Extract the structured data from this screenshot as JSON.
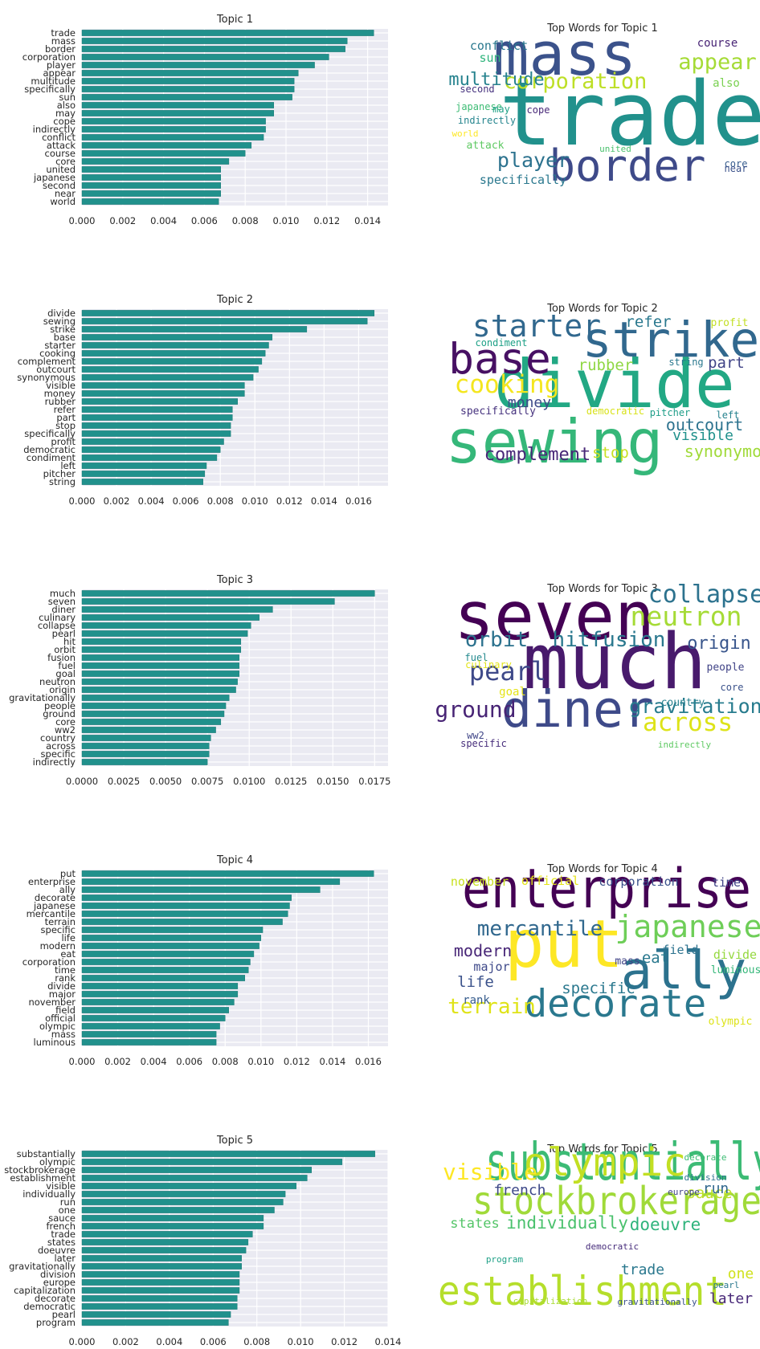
{
  "chart_data": [
    {
      "type": "bar",
      "orientation": "horizontal",
      "title": "Topic 1",
      "categories": [
        "trade",
        "mass",
        "border",
        "corporation",
        "player",
        "appear",
        "multitude",
        "specifically",
        "sun",
        "also",
        "may",
        "cope",
        "indirectly",
        "conflict",
        "attack",
        "course",
        "core",
        "united",
        "japanese",
        "second",
        "near",
        "world"
      ],
      "values": [
        0.0143,
        0.013,
        0.0129,
        0.0121,
        0.0114,
        0.0106,
        0.0104,
        0.0104,
        0.0103,
        0.0094,
        0.0094,
        0.009,
        0.009,
        0.0089,
        0.0083,
        0.008,
        0.0072,
        0.0068,
        0.0068,
        0.0068,
        0.0068,
        0.0067
      ],
      "xticks": [
        "0.000",
        "0.002",
        "0.004",
        "0.006",
        "0.008",
        "0.010",
        "0.012",
        "0.014"
      ],
      "xlim": [
        0,
        0.015
      ],
      "grid": true,
      "wordcloud": {
        "title": "Top Words for Topic 1",
        "words": [
          {
            "text": "trade",
            "color": "#21918c"
          },
          {
            "text": "mass",
            "color": "#3b528b"
          },
          {
            "text": "border",
            "color": "#3e4a89"
          },
          {
            "text": "corporation",
            "color": "#bddf26"
          },
          {
            "text": "appear",
            "color": "#a5db36"
          },
          {
            "text": "player",
            "color": "#2c728e"
          },
          {
            "text": "multitude",
            "color": "#26828e"
          },
          {
            "text": "specifically",
            "color": "#2a788e"
          },
          {
            "text": "conflict",
            "color": "#2a788e"
          },
          {
            "text": "sun",
            "color": "#2fb47c"
          },
          {
            "text": "course",
            "color": "#482475"
          },
          {
            "text": "also",
            "color": "#7ad151"
          },
          {
            "text": "second",
            "color": "#46327e"
          },
          {
            "text": "japanese",
            "color": "#3dbc74"
          },
          {
            "text": "may",
            "color": "#1fa187"
          },
          {
            "text": "cope",
            "color": "#482878"
          },
          {
            "text": "indirectly",
            "color": "#25858e"
          },
          {
            "text": "world",
            "color": "#fde725"
          },
          {
            "text": "attack",
            "color": "#5ec962"
          },
          {
            "text": "united",
            "color": "#4ac16d"
          },
          {
            "text": "core",
            "color": "#365c8d"
          },
          {
            "text": "near",
            "color": "#3b528b"
          }
        ]
      }
    },
    {
      "type": "bar",
      "orientation": "horizontal",
      "title": "Topic 2",
      "categories": [
        "divide",
        "sewing",
        "strike",
        "base",
        "starter",
        "cooking",
        "complement",
        "outcourt",
        "synonymous",
        "visible",
        "money",
        "rubber",
        "refer",
        "part",
        "stop",
        "specifically",
        "profit",
        "democratic",
        "condiment",
        "left",
        "pitcher",
        "string"
      ],
      "values": [
        0.0169,
        0.0165,
        0.013,
        0.011,
        0.0108,
        0.0106,
        0.0104,
        0.0102,
        0.0099,
        0.0094,
        0.0094,
        0.009,
        0.0087,
        0.0087,
        0.0086,
        0.0086,
        0.0082,
        0.008,
        0.0078,
        0.0072,
        0.0071,
        0.007
      ],
      "xticks": [
        "0.000",
        "0.002",
        "0.004",
        "0.006",
        "0.008",
        "0.010",
        "0.012",
        "0.014",
        "0.016"
      ],
      "xlim": [
        0,
        0.0177
      ],
      "grid": true,
      "wordcloud": {
        "title": "Top Words for Topic 2",
        "words": [
          {
            "text": "divide",
            "color": "#22a884"
          },
          {
            "text": "sewing",
            "color": "#35b779"
          },
          {
            "text": "strike",
            "color": "#31688e"
          },
          {
            "text": "base",
            "color": "#471063"
          },
          {
            "text": "starter",
            "color": "#31688e"
          },
          {
            "text": "cooking",
            "color": "#f4e61e"
          },
          {
            "text": "complement",
            "color": "#482878"
          },
          {
            "text": "outcourt",
            "color": "#2c728e"
          },
          {
            "text": "synonymous",
            "color": "#a0da39"
          },
          {
            "text": "visible",
            "color": "#21918c"
          },
          {
            "text": "money",
            "color": "#3e4989"
          },
          {
            "text": "rubber",
            "color": "#8fd744"
          },
          {
            "text": "refer",
            "color": "#2a788e"
          },
          {
            "text": "part",
            "color": "#414487"
          },
          {
            "text": "stop",
            "color": "#c8e020"
          },
          {
            "text": "specifically",
            "color": "#46327e"
          },
          {
            "text": "profit",
            "color": "#c2df23"
          },
          {
            "text": "democratic",
            "color": "#d8e219"
          },
          {
            "text": "condiment",
            "color": "#1fa187"
          },
          {
            "text": "left",
            "color": "#26828e"
          },
          {
            "text": "pitcher",
            "color": "#1f9e89"
          },
          {
            "text": "string",
            "color": "#2a788e"
          }
        ]
      }
    },
    {
      "type": "bar",
      "orientation": "horizontal",
      "title": "Topic 3",
      "categories": [
        "much",
        "seven",
        "diner",
        "culinary",
        "collapse",
        "pearl",
        "hit",
        "orbit",
        "fusion",
        "fuel",
        "goal",
        "neutron",
        "origin",
        "gravitationally",
        "people",
        "ground",
        "core",
        "ww2",
        "country",
        "across",
        "specific",
        "indirectly"
      ],
      "values": [
        0.0175,
        0.0151,
        0.0114,
        0.0106,
        0.0101,
        0.0099,
        0.0095,
        0.0095,
        0.0094,
        0.0094,
        0.0094,
        0.0093,
        0.0092,
        0.0088,
        0.0086,
        0.0085,
        0.0083,
        0.008,
        0.0077,
        0.0076,
        0.0076,
        0.0075
      ],
      "xticks": [
        "0.0000",
        "0.0025",
        "0.0050",
        "0.0075",
        "0.0100",
        "0.0125",
        "0.0150",
        "0.0175"
      ],
      "xlim": [
        0,
        0.0183
      ],
      "grid": true,
      "wordcloud": {
        "title": "Top Words for Topic 3",
        "words": [
          {
            "text": "seven",
            "color": "#440154"
          },
          {
            "text": "much",
            "color": "#481a6c"
          },
          {
            "text": "diner",
            "color": "#3e4a89"
          },
          {
            "text": "neutron",
            "color": "#a5db36"
          },
          {
            "text": "collapse",
            "color": "#2c728e"
          },
          {
            "text": "orbit",
            "color": "#2c728e"
          },
          {
            "text": "hitfusion",
            "color": "#2a788e"
          },
          {
            "text": "origin",
            "color": "#39568c"
          },
          {
            "text": "pearl",
            "color": "#3e4989"
          },
          {
            "text": "gravitationally",
            "color": "#287c8e"
          },
          {
            "text": "across",
            "color": "#dde318"
          },
          {
            "text": "ground",
            "color": "#482475"
          },
          {
            "text": "goal",
            "color": "#e5e419"
          },
          {
            "text": "fuel",
            "color": "#23898e"
          },
          {
            "text": "culinary",
            "color": "#e2e418"
          },
          {
            "text": "people",
            "color": "#414487"
          },
          {
            "text": "country",
            "color": "#27808e"
          },
          {
            "text": "core",
            "color": "#3b528b"
          },
          {
            "text": "ww2",
            "color": "#404688"
          },
          {
            "text": "specific",
            "color": "#472d7b"
          },
          {
            "text": "indirectly",
            "color": "#5ec962"
          }
        ]
      }
    },
    {
      "type": "bar",
      "orientation": "horizontal",
      "title": "Topic 4",
      "categories": [
        "put",
        "enterprise",
        "ally",
        "decorate",
        "japanese",
        "mercantile",
        "terrain",
        "specific",
        "life",
        "modern",
        "eat",
        "corporation",
        "time",
        "rank",
        "divide",
        "major",
        "november",
        "field",
        "official",
        "olympic",
        "mass",
        "luminous"
      ],
      "values": [
        0.0163,
        0.0144,
        0.0133,
        0.0117,
        0.0116,
        0.0115,
        0.0112,
        0.0101,
        0.01,
        0.0099,
        0.0096,
        0.0094,
        0.0093,
        0.0091,
        0.0087,
        0.0087,
        0.0085,
        0.0082,
        0.008,
        0.0077,
        0.0075,
        0.0075
      ],
      "xticks": [
        "0.000",
        "0.002",
        "0.004",
        "0.006",
        "0.008",
        "0.010",
        "0.012",
        "0.014",
        "0.016"
      ],
      "xlim": [
        0,
        0.0171
      ],
      "grid": true,
      "wordcloud": {
        "title": "Top Words for Topic 4",
        "words": [
          {
            "text": "enterprise",
            "color": "#440154"
          },
          {
            "text": "put",
            "color": "#fde725"
          },
          {
            "text": "ally",
            "color": "#2c728e"
          },
          {
            "text": "decorate",
            "color": "#2a788e"
          },
          {
            "text": "japanese",
            "color": "#6ece58"
          },
          {
            "text": "mercantile",
            "color": "#31688e"
          },
          {
            "text": "terrain",
            "color": "#dfe318"
          },
          {
            "text": "modern",
            "color": "#482677"
          },
          {
            "text": "eat",
            "color": "#2a788e"
          },
          {
            "text": "life",
            "color": "#3b528b"
          },
          {
            "text": "specific",
            "color": "#2a788e"
          },
          {
            "text": "rank",
            "color": "#365c8d"
          },
          {
            "text": "november",
            "color": "#c8e020"
          },
          {
            "text": "official",
            "color": "#e5e419"
          },
          {
            "text": "corporation",
            "color": "#3b528b"
          },
          {
            "text": "time",
            "color": "#414487"
          },
          {
            "text": "field",
            "color": "#2c728e"
          },
          {
            "text": "divide",
            "color": "#95d840"
          },
          {
            "text": "luminous",
            "color": "#35b779"
          },
          {
            "text": "major",
            "color": "#3e4989"
          },
          {
            "text": "mass",
            "color": "#414487"
          },
          {
            "text": "olympic",
            "color": "#dde318"
          }
        ]
      }
    },
    {
      "type": "bar",
      "orientation": "horizontal",
      "title": "Topic 5",
      "categories": [
        "substantially",
        "olympic",
        "stockbrokerage",
        "establishment",
        "visible",
        "individually",
        "run",
        "one",
        "sauce",
        "french",
        "trade",
        "states",
        "doeuvre",
        "later",
        "gravitationally",
        "division",
        "europe",
        "capitalization",
        "decorate",
        "democratic",
        "pearl",
        "program"
      ],
      "values": [
        0.0134,
        0.0119,
        0.0105,
        0.0103,
        0.0098,
        0.0093,
        0.0092,
        0.0088,
        0.0083,
        0.0083,
        0.0078,
        0.0076,
        0.0075,
        0.0073,
        0.0073,
        0.0072,
        0.0072,
        0.0072,
        0.0071,
        0.0071,
        0.0068,
        0.0067
      ],
      "xticks": [
        "0.000",
        "0.002",
        "0.004",
        "0.006",
        "0.008",
        "0.010",
        "0.012",
        "0.014"
      ],
      "xlim": [
        0,
        0.014
      ],
      "grid": true,
      "wordcloud": {
        "title": "Top Words for Topic 5",
        "words": [
          {
            "text": "substantially",
            "color": "#3cbb75"
          },
          {
            "text": "establishment",
            "color": "#b5de2b"
          },
          {
            "text": "stockbrokerage",
            "color": "#a0da39"
          },
          {
            "text": "olympic",
            "color": "#c2df23"
          },
          {
            "text": "visible",
            "color": "#fde725"
          },
          {
            "text": "individually",
            "color": "#4ac16d"
          },
          {
            "text": "doeuvre",
            "color": "#2fb47c"
          },
          {
            "text": "french",
            "color": "#3e4989"
          },
          {
            "text": "states",
            "color": "#54c568"
          },
          {
            "text": "sauce",
            "color": "#bddf26"
          },
          {
            "text": "run",
            "color": "#31688e"
          },
          {
            "text": "trade",
            "color": "#2a788e"
          },
          {
            "text": "one",
            "color": "#d0e11c"
          },
          {
            "text": "later",
            "color": "#482878"
          },
          {
            "text": "decorate",
            "color": "#3dbc74"
          },
          {
            "text": "division",
            "color": "#2c728e"
          },
          {
            "text": "europe",
            "color": "#414487"
          },
          {
            "text": "democratic",
            "color": "#472d7b"
          },
          {
            "text": "program",
            "color": "#1fa187"
          },
          {
            "text": "pearl",
            "color": "#2a788e"
          },
          {
            "text": "capitalization",
            "color": "#a8db34"
          },
          {
            "text": "gravitationally",
            "color": "#3b528b"
          }
        ]
      }
    }
  ]
}
